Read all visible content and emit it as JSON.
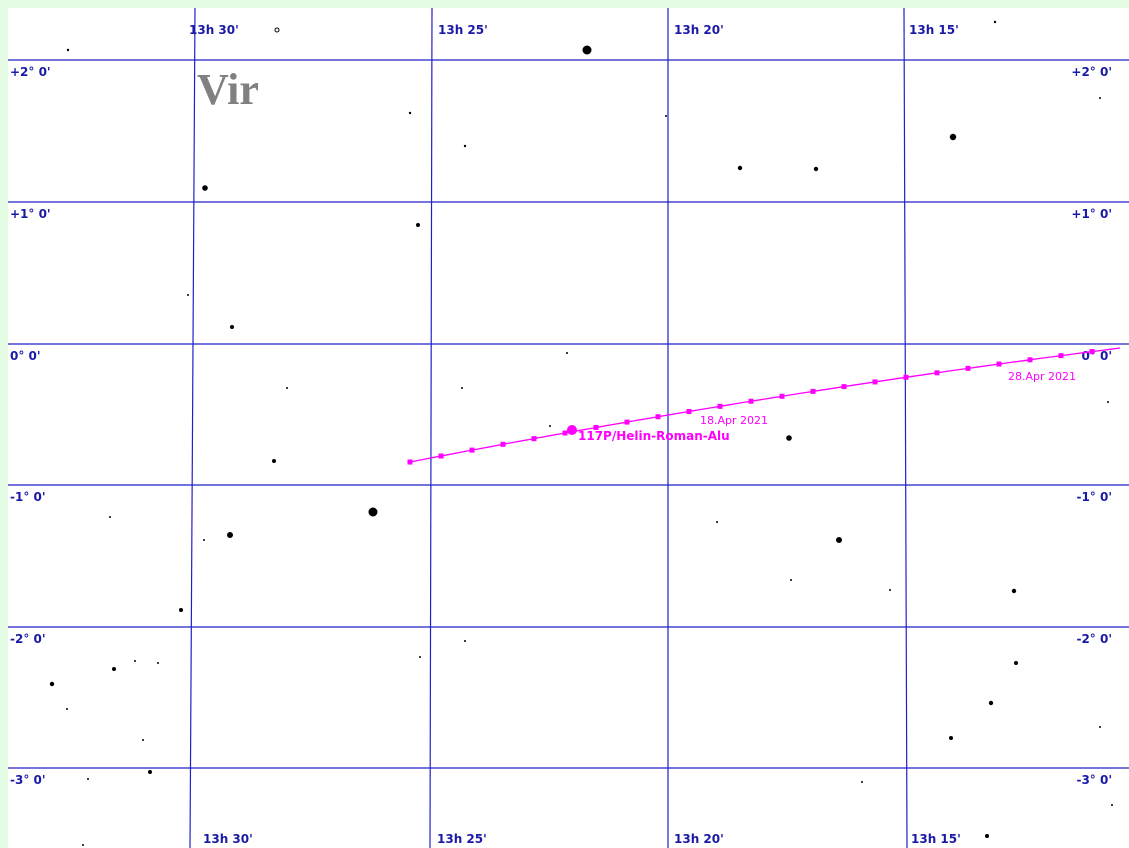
{
  "constellation": "Vir",
  "ra_labels": [
    "13h 30'",
    "13h 25'",
    "13h 20'",
    "13h 15'"
  ],
  "dec_labels": [
    "+2° 0'",
    "+1° 0'",
    "0° 0'",
    "-1° 0'",
    "-2° 0'",
    "-3° 0'"
  ],
  "comet": {
    "name": "117P/Helin-Roman-Alu",
    "dates": [
      "18.Apr 2021",
      "28.Apr 2021"
    ]
  }
}
